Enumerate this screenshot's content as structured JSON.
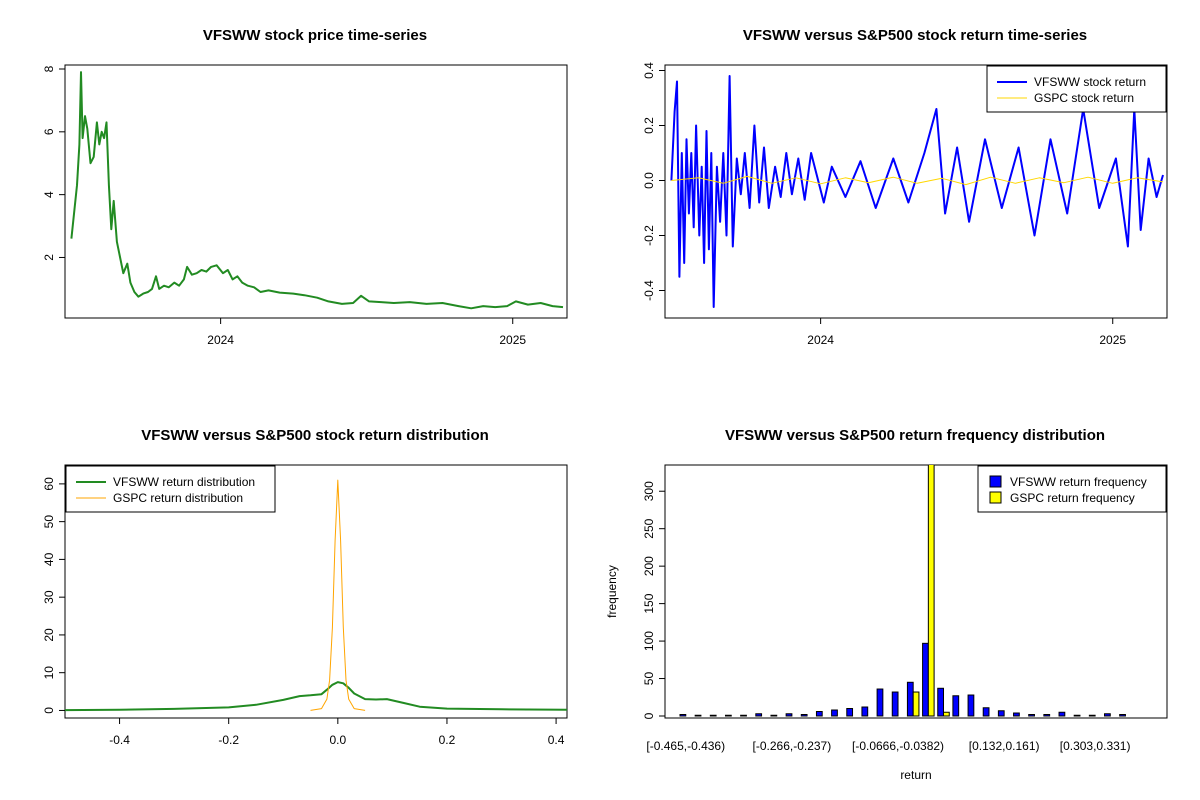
{
  "colors": {
    "vfsww_price": "#228B22",
    "vfsww_return": "#0000FF",
    "gspc_return": "#FFD700",
    "gspc_density": "#FFA500",
    "vfsww_density": "#228B22",
    "bar_vfsww": "#0000FF",
    "bar_gspc": "#FFFF00"
  },
  "chart_data": [
    {
      "type": "line",
      "title": "VFSWW stock price time-series",
      "xlabel": "",
      "ylabel": "",
      "x_ticks": [
        "2024",
        "2025"
      ],
      "y_ticks": [
        2,
        4,
        6,
        8
      ],
      "xlim": [
        "2023-06-20",
        "2025-03-10"
      ],
      "ylim": [
        0.2,
        8.0
      ],
      "series": [
        {
          "values": [
            [
              "2023-06-28",
              2.6
            ],
            [
              "2023-07-05",
              4.3
            ],
            [
              "2023-07-08",
              5.6
            ],
            [
              "2023-07-10",
              7.9
            ],
            [
              "2023-07-12",
              5.8
            ],
            [
              "2023-07-15",
              6.5
            ],
            [
              "2023-07-18",
              6.1
            ],
            [
              "2023-07-22",
              5.0
            ],
            [
              "2023-07-26",
              5.2
            ],
            [
              "2023-07-30",
              6.3
            ],
            [
              "2023-08-02",
              5.6
            ],
            [
              "2023-08-05",
              6.0
            ],
            [
              "2023-08-08",
              5.8
            ],
            [
              "2023-08-11",
              6.3
            ],
            [
              "2023-08-14",
              4.3
            ],
            [
              "2023-08-17",
              2.9
            ],
            [
              "2023-08-20",
              3.8
            ],
            [
              "2023-08-24",
              2.5
            ],
            [
              "2023-08-28",
              2.0
            ],
            [
              "2023-09-01",
              1.5
            ],
            [
              "2023-09-06",
              1.8
            ],
            [
              "2023-09-10",
              1.2
            ],
            [
              "2023-09-15",
              0.9
            ],
            [
              "2023-09-20",
              0.75
            ],
            [
              "2023-09-26",
              0.85
            ],
            [
              "2023-10-02",
              0.9
            ],
            [
              "2023-10-07",
              1.0
            ],
            [
              "2023-10-12",
              1.4
            ],
            [
              "2023-10-16",
              1.0
            ],
            [
              "2023-10-22",
              1.1
            ],
            [
              "2023-10-28",
              1.05
            ],
            [
              "2023-11-04",
              1.2
            ],
            [
              "2023-11-10",
              1.1
            ],
            [
              "2023-11-16",
              1.3
            ],
            [
              "2023-11-20",
              1.7
            ],
            [
              "2023-11-26",
              1.45
            ],
            [
              "2023-12-02",
              1.5
            ],
            [
              "2023-12-08",
              1.6
            ],
            [
              "2023-12-14",
              1.55
            ],
            [
              "2023-12-20",
              1.7
            ],
            [
              "2023-12-27",
              1.75
            ],
            [
              "2024-01-04",
              1.5
            ],
            [
              "2024-01-10",
              1.6
            ],
            [
              "2024-01-16",
              1.3
            ],
            [
              "2024-01-22",
              1.4
            ],
            [
              "2024-01-28",
              1.2
            ],
            [
              "2024-02-04",
              1.1
            ],
            [
              "2024-02-12",
              1.05
            ],
            [
              "2024-02-20",
              0.9
            ],
            [
              "2024-03-01",
              0.95
            ],
            [
              "2024-03-15",
              0.88
            ],
            [
              "2024-04-01",
              0.85
            ],
            [
              "2024-04-15",
              0.8
            ],
            [
              "2024-05-01",
              0.72
            ],
            [
              "2024-05-15",
              0.6
            ],
            [
              "2024-06-01",
              0.52
            ],
            [
              "2024-06-15",
              0.55
            ],
            [
              "2024-06-25",
              0.78
            ],
            [
              "2024-07-05",
              0.6
            ],
            [
              "2024-07-20",
              0.58
            ],
            [
              "2024-08-05",
              0.55
            ],
            [
              "2024-08-25",
              0.58
            ],
            [
              "2024-09-15",
              0.52
            ],
            [
              "2024-10-05",
              0.55
            ],
            [
              "2024-10-25",
              0.45
            ],
            [
              "2024-11-10",
              0.38
            ],
            [
              "2024-11-25",
              0.45
            ],
            [
              "2024-12-10",
              0.42
            ],
            [
              "2024-12-25",
              0.45
            ],
            [
              "2025-01-05",
              0.6
            ],
            [
              "2025-01-20",
              0.5
            ],
            [
              "2025-02-05",
              0.55
            ],
            [
              "2025-02-20",
              0.45
            ],
            [
              "2025-03-05",
              0.42
            ]
          ]
        }
      ]
    },
    {
      "type": "line",
      "title": "VFSWW versus S&P500 stock return time-series",
      "xlabel": "",
      "ylabel": "",
      "x_ticks": [
        "2024",
        "2025"
      ],
      "y_ticks": [
        -0.4,
        -0.2,
        0.0,
        0.2,
        0.4
      ],
      "xlim": [
        "2023-06-20",
        "2025-03-10"
      ],
      "ylim": [
        -0.5,
        0.42
      ],
      "legend": "top-right",
      "series": [
        {
          "name": "VFSWW stock return",
          "values": [
            [
              "2023-06-28",
              0.0
            ],
            [
              "2023-07-02",
              0.25
            ],
            [
              "2023-07-05",
              0.36
            ],
            [
              "2023-07-08",
              -0.35
            ],
            [
              "2023-07-11",
              0.1
            ],
            [
              "2023-07-14",
              -0.3
            ],
            [
              "2023-07-17",
              0.15
            ],
            [
              "2023-07-20",
              -0.12
            ],
            [
              "2023-07-23",
              0.1
            ],
            [
              "2023-07-26",
              -0.17
            ],
            [
              "2023-07-29",
              0.2
            ],
            [
              "2023-08-02",
              -0.2
            ],
            [
              "2023-08-05",
              0.05
            ],
            [
              "2023-08-08",
              -0.3
            ],
            [
              "2023-08-11",
              0.18
            ],
            [
              "2023-08-14",
              -0.25
            ],
            [
              "2023-08-17",
              0.1
            ],
            [
              "2023-08-20",
              -0.46
            ],
            [
              "2023-08-24",
              0.05
            ],
            [
              "2023-08-28",
              -0.15
            ],
            [
              "2023-09-01",
              0.1
            ],
            [
              "2023-09-05",
              -0.2
            ],
            [
              "2023-09-09",
              0.38
            ],
            [
              "2023-09-13",
              -0.24
            ],
            [
              "2023-09-18",
              0.08
            ],
            [
              "2023-09-23",
              -0.05
            ],
            [
              "2023-09-28",
              0.1
            ],
            [
              "2023-10-04",
              -0.1
            ],
            [
              "2023-10-10",
              0.2
            ],
            [
              "2023-10-16",
              -0.08
            ],
            [
              "2023-10-22",
              0.12
            ],
            [
              "2023-10-28",
              -0.1
            ],
            [
              "2023-11-05",
              0.05
            ],
            [
              "2023-11-12",
              -0.06
            ],
            [
              "2023-11-19",
              0.1
            ],
            [
              "2023-11-26",
              -0.05
            ],
            [
              "2023-12-04",
              0.08
            ],
            [
              "2023-12-12",
              -0.07
            ],
            [
              "2023-12-20",
              0.1
            ],
            [
              "2024-01-05",
              -0.08
            ],
            [
              "2024-01-15",
              0.05
            ],
            [
              "2024-02-01",
              -0.06
            ],
            [
              "2024-02-20",
              0.07
            ],
            [
              "2024-03-10",
              -0.1
            ],
            [
              "2024-04-01",
              0.08
            ],
            [
              "2024-04-20",
              -0.08
            ],
            [
              "2024-05-10",
              0.1
            ],
            [
              "2024-05-25",
              0.26
            ],
            [
              "2024-06-05",
              -0.12
            ],
            [
              "2024-06-20",
              0.12
            ],
            [
              "2024-07-05",
              -0.15
            ],
            [
              "2024-07-25",
              0.15
            ],
            [
              "2024-08-15",
              -0.1
            ],
            [
              "2024-09-05",
              0.12
            ],
            [
              "2024-09-25",
              -0.2
            ],
            [
              "2024-10-15",
              0.15
            ],
            [
              "2024-11-05",
              -0.12
            ],
            [
              "2024-11-25",
              0.26
            ],
            [
              "2024-12-15",
              -0.1
            ],
            [
              "2025-01-05",
              0.08
            ],
            [
              "2025-01-20",
              -0.24
            ],
            [
              "2025-01-28",
              0.26
            ],
            [
              "2025-02-05",
              -0.18
            ],
            [
              "2025-02-15",
              0.08
            ],
            [
              "2025-02-25",
              -0.06
            ],
            [
              "2025-03-05",
              0.02
            ]
          ]
        },
        {
          "name": "GSPC stock return",
          "values": [
            [
              "2023-06-28",
              0.0
            ],
            [
              "2023-08-01",
              0.01
            ],
            [
              "2023-09-01",
              -0.01
            ],
            [
              "2023-10-01",
              0.015
            ],
            [
              "2023-11-01",
              -0.01
            ],
            [
              "2023-12-01",
              0.01
            ],
            [
              "2024-01-01",
              -0.012
            ],
            [
              "2024-02-01",
              0.01
            ],
            [
              "2024-03-01",
              -0.008
            ],
            [
              "2024-04-01",
              0.012
            ],
            [
              "2024-05-01",
              -0.01
            ],
            [
              "2024-06-01",
              0.008
            ],
            [
              "2024-07-01",
              -0.015
            ],
            [
              "2024-08-01",
              0.012
            ],
            [
              "2024-09-01",
              -0.01
            ],
            [
              "2024-10-01",
              0.01
            ],
            [
              "2024-11-01",
              -0.008
            ],
            [
              "2024-12-01",
              0.012
            ],
            [
              "2025-01-01",
              -0.01
            ],
            [
              "2025-02-01",
              0.01
            ],
            [
              "2025-03-05",
              -0.005
            ]
          ]
        }
      ]
    },
    {
      "type": "line",
      "title": "VFSWW versus S&P500 stock return distribution",
      "xlabel": "",
      "ylabel": "",
      "x_ticks": [
        -0.4,
        -0.2,
        0.0,
        0.2,
        0.4
      ],
      "y_ticks": [
        0,
        10,
        20,
        30,
        40,
        50,
        60
      ],
      "xlim": [
        -0.5,
        0.42
      ],
      "ylim": [
        -2,
        65
      ],
      "legend": "top-left",
      "series": [
        {
          "name": "VFSWW return distribution",
          "x": [
            -0.5,
            -0.4,
            -0.3,
            -0.2,
            -0.15,
            -0.1,
            -0.07,
            -0.05,
            -0.03,
            -0.02,
            -0.01,
            0.0,
            0.01,
            0.02,
            0.03,
            0.05,
            0.07,
            0.09,
            0.12,
            0.15,
            0.2,
            0.3,
            0.42
          ],
          "y": [
            0.1,
            0.2,
            0.4,
            0.8,
            1.5,
            2.8,
            3.8,
            4.0,
            4.3,
            5.5,
            6.8,
            7.5,
            7.2,
            6.0,
            4.5,
            3.0,
            2.9,
            3.0,
            2.0,
            1.0,
            0.5,
            0.3,
            0.2
          ]
        },
        {
          "name": "GSPC return distribution",
          "x": [
            -0.05,
            -0.03,
            -0.02,
            -0.015,
            -0.01,
            -0.005,
            0.0,
            0.005,
            0.01,
            0.015,
            0.02,
            0.03,
            0.05
          ],
          "y": [
            0,
            0.5,
            3,
            8,
            22,
            45,
            61,
            45,
            22,
            8,
            3,
            0.5,
            0
          ]
        }
      ]
    },
    {
      "type": "bar",
      "title": "VFSWW versus S&P500 return frequency distribution",
      "xlabel": "return",
      "ylabel": "frequency",
      "x_tick_labels": [
        "[-0.465,-0.436)",
        "[-0.266,-0.237)",
        "[-0.0666,-0.0382)",
        "[0.132,0.161)",
        "[0.303,0.331)"
      ],
      "y_ticks": [
        0,
        50,
        100,
        150,
        200,
        250,
        300
      ],
      "ylim": [
        0,
        335
      ],
      "legend": "top-right",
      "bin_count": 31,
      "series": [
        {
          "name": "VFSWW return frequency",
          "values": [
            2,
            1,
            1,
            1,
            1,
            3,
            1,
            3,
            2,
            6,
            8,
            10,
            12,
            36,
            32,
            45,
            97,
            37,
            27,
            28,
            11,
            7,
            4,
            2,
            2,
            5,
            1,
            1,
            3,
            2,
            0
          ]
        },
        {
          "name": "GSPC return frequency",
          "values": [
            0,
            0,
            0,
            0,
            0,
            0,
            0,
            0,
            0,
            0,
            0,
            0,
            0,
            0,
            0,
            32,
            340,
            5,
            0,
            0,
            0,
            0,
            0,
            0,
            0,
            0,
            0,
            0,
            0,
            0,
            0
          ]
        }
      ]
    }
  ]
}
